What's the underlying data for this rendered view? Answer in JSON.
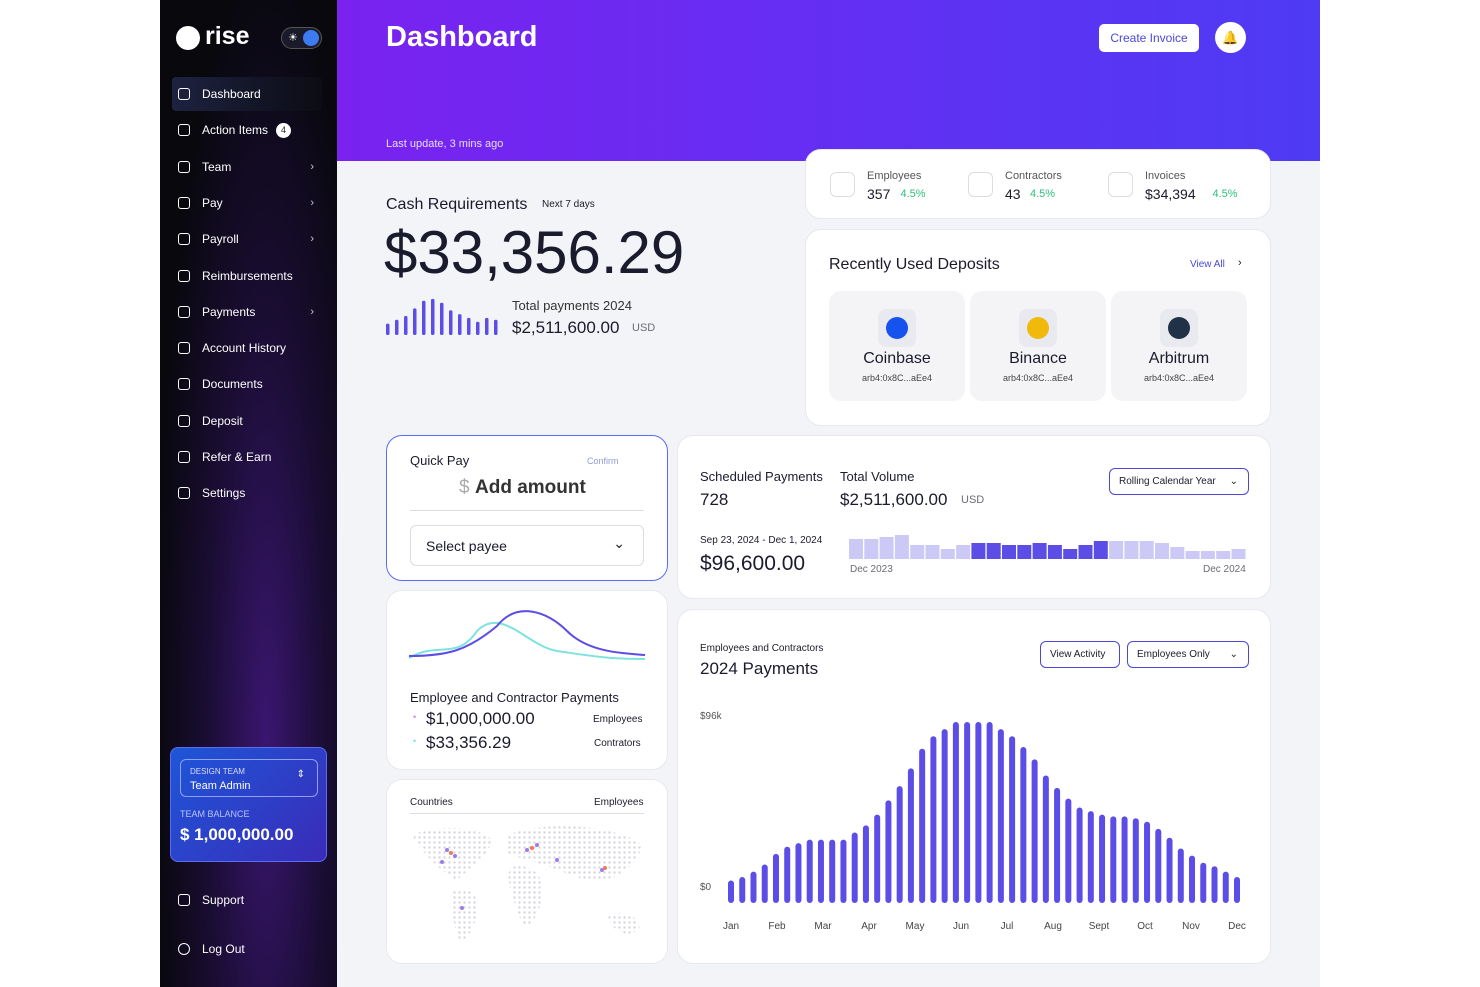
{
  "sidebar": {
    "logo": "rise",
    "nav": [
      {
        "label": "Dashboard",
        "active": true
      },
      {
        "label": "Action Items",
        "badge": "4"
      },
      {
        "label": "Team",
        "submenu": true
      },
      {
        "label": "Pay",
        "submenu": true
      },
      {
        "label": "Payroll",
        "submenu": true
      },
      {
        "label": "Reimbursements"
      },
      {
        "label": "Payments",
        "submenu": true
      },
      {
        "label": "Account History"
      },
      {
        "label": "Documents"
      },
      {
        "label": "Deposit"
      },
      {
        "label": "Refer & Earn"
      },
      {
        "label": "Settings"
      }
    ],
    "team": {
      "label": "DESIGN TEAM",
      "role": "Team Admin",
      "balance_label": "TEAM BALANCE",
      "balance": "$ 1,000,000.00"
    },
    "support": "Support",
    "logout": "Log Out"
  },
  "header": {
    "title": "Dashboard",
    "last_update": "Last update, 3 mins ago",
    "create_invoice": "Create Invoice"
  },
  "cash": {
    "title": "Cash Requirements",
    "period": "Next 7 days",
    "amount": "$33,356.29",
    "total_label": "Total payments 2024",
    "total": "$2,511,600.00",
    "currency": "USD",
    "color": "#5b4de6",
    "ylim": [
      0,
      40
    ],
    "values": [
      12,
      16,
      20,
      28,
      36,
      38,
      34,
      26,
      22,
      18,
      14,
      18,
      16
    ]
  },
  "stats": [
    {
      "label": "Employees",
      "value": "357",
      "change": "4.5%"
    },
    {
      "label": "Contractors",
      "value": "43",
      "change": "4.5%"
    },
    {
      "label": "Invoices",
      "value": "$34,394",
      "change": "4.5%"
    }
  ],
  "deposits": {
    "title": "Recently Used Deposits",
    "view_all": "View All",
    "items": [
      {
        "name": "Coinbase",
        "address": "arb4:0x8C...aEe4"
      },
      {
        "name": "Binance",
        "address": "arb4:0x8C...aEe4"
      },
      {
        "name": "Arbitrum",
        "address": "arb4:0x8C...aEe4"
      }
    ]
  },
  "quick_pay": {
    "title": "Quick Pay",
    "confirm": "Confirm",
    "currency_symbol": "$",
    "amount_placeholder": "Add amount",
    "select": "Select payee"
  },
  "scheduled": {
    "label": "Scheduled Payments",
    "count": "728",
    "volume_label": "Total Volume",
    "volume": "$2,511,600.00",
    "currency": "USD",
    "dropdown": "Rolling Calendar Year",
    "range": "Sep 23, 2024 - Dec 1, 2024",
    "range_amount": "$96,600.00",
    "start": "Dec 2023",
    "end": "Dec 2024",
    "ylim": [
      0,
      24
    ],
    "series": [
      {
        "color": "#cdc9f6",
        "values": [
          20,
          20,
          22,
          24,
          14,
          14,
          10,
          14,
          null,
          null,
          null,
          null,
          null,
          null,
          null,
          null,
          null,
          18,
          18,
          18,
          16,
          12,
          8,
          8,
          8,
          10
        ]
      },
      {
        "color": "#5b4de6",
        "values": [
          null,
          null,
          null,
          null,
          null,
          null,
          null,
          null,
          16,
          16,
          14,
          14,
          16,
          14,
          10,
          14,
          18,
          null,
          null,
          null,
          null,
          null,
          null,
          null,
          null,
          null
        ]
      }
    ]
  },
  "ec_payments": {
    "title": "Employee and Contractor Payments",
    "employees_amount": "$1,000,000.00",
    "employees_label": "Employees",
    "contractors_amount": "$33,356.29",
    "contractors_label": "Contrators"
  },
  "countries": {
    "title": "Countries",
    "column": "Employees"
  },
  "payments": {
    "type": "bar",
    "subtitle": "Employees and Contractors",
    "title": "2024 Payments",
    "view_activity": "View Activity",
    "filter": "Employees Only",
    "color": "#5b4de6",
    "ylim": [
      0,
      96000
    ],
    "yticks": [
      {
        "value": 0,
        "label": "$0"
      },
      {
        "value": 96000,
        "label": "$96k"
      }
    ],
    "categories": [
      "Jan",
      "Feb",
      "Mar",
      "Apr",
      "May",
      "Jun",
      "Jul",
      "Aug",
      "Sept",
      "Oct",
      "Nov",
      "Dec"
    ],
    "values": [
      7000,
      9000,
      12000,
      16000,
      22000,
      26000,
      28000,
      30000,
      30000,
      30000,
      30000,
      34000,
      38000,
      44000,
      52000,
      60000,
      70000,
      81000,
      88000,
      92000,
      96000,
      96000,
      96000,
      96000,
      92000,
      88000,
      82000,
      75000,
      66000,
      59000,
      53000,
      48000,
      46000,
      44000,
      43000,
      43000,
      42000,
      40000,
      36000,
      31000,
      25000,
      21000,
      17000,
      15000,
      12000,
      9000
    ]
  }
}
